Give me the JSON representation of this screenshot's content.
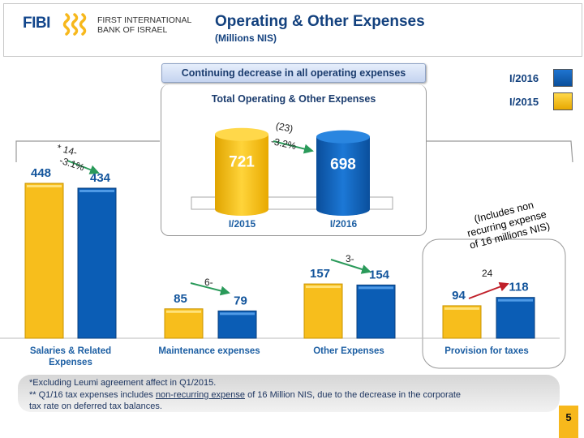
{
  "header": {
    "logo_text": "FIBI",
    "bank_name_line1": "FIRST INTERNATIONAL",
    "bank_name_line2": "BANK OF ISRAEL",
    "title": "Operating & Other Expenses",
    "subtitle": "(Millions NIS)"
  },
  "banner": "Continuing decrease in all operating expenses",
  "colors": {
    "I/2015": "#f7be1c",
    "I/2016": "#0b5db5",
    "decrease_arrow": "#2a9a5a",
    "increase_arrow": "#c0202a",
    "accent": "#f7b81c"
  },
  "chart_data": [
    {
      "type": "bar",
      "title": "Total Operating & Other Expenses",
      "categories": [
        "I/2015",
        "I/2016"
      ],
      "values": [
        721,
        698
      ],
      "annotation": {
        "change": "(23)",
        "pct": "-3.2%"
      }
    },
    {
      "type": "bar",
      "categories": [
        "Salaries & Related Expenses",
        "Maintenance expenses",
        "Other Expenses",
        "Provision for taxes"
      ],
      "series": [
        {
          "name": "I/2015",
          "values": [
            448,
            85,
            157,
            94
          ]
        },
        {
          "name": "I/2016",
          "values": [
            434,
            79,
            154,
            118
          ]
        }
      ],
      "legend": "top-right",
      "changes": [
        {
          "label": "* 14-",
          "pct": "-3.1%"
        },
        {
          "label": "6-"
        },
        {
          "label": "3-"
        },
        {
          "label": "24"
        }
      ]
    }
  ],
  "legend": [
    {
      "label": "I/2016"
    },
    {
      "label": "I/2015"
    }
  ],
  "tax_note": [
    "(Includes non",
    "recurring expense",
    "of 16 millions NIS)"
  ],
  "footnote": {
    "line1": "*Excluding Leumi agreement affect in Q1/2015.",
    "line2_pre": "** Q1/16 tax expenses includes ",
    "line2_link": "non-recurring expense",
    "line2_post": " of 16 Million NIS, due to the decrease in the corporate",
    "line3": "tax rate on deferred tax balances."
  },
  "page_number": "5"
}
